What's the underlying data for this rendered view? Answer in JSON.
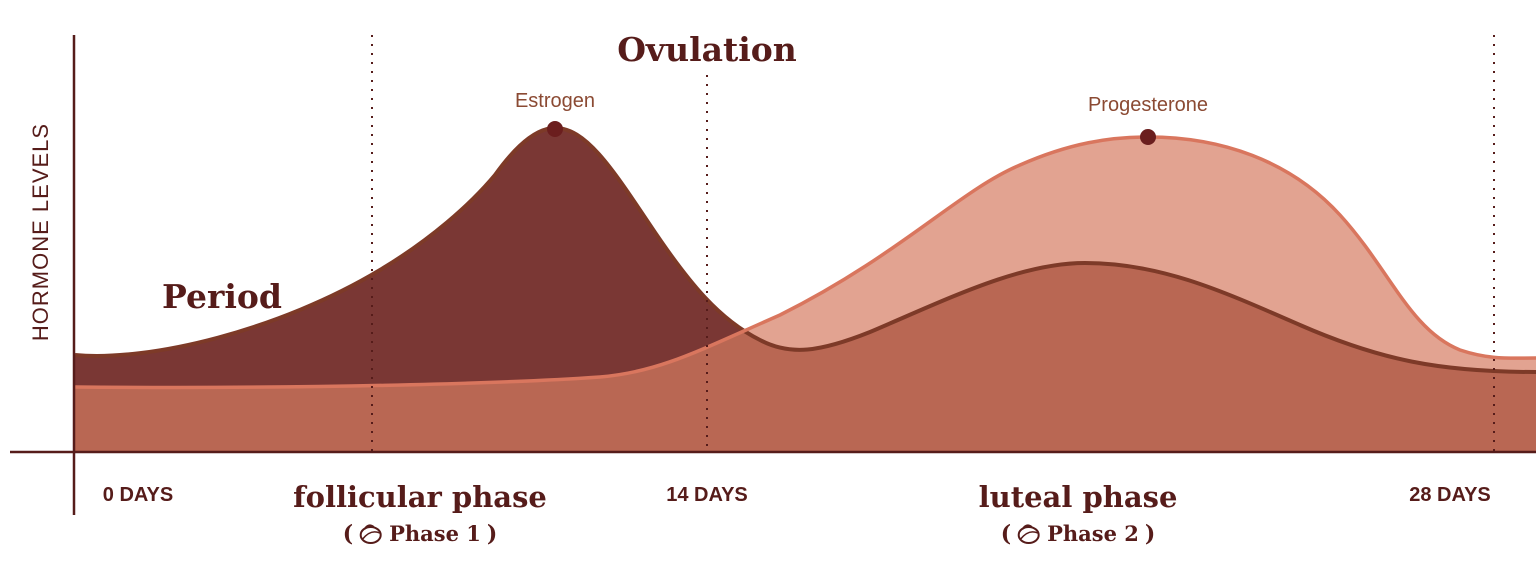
{
  "y_axis_label": "HORMONE LEVELS",
  "markers": {
    "ovulation": "Ovulation",
    "period": "Period"
  },
  "hormones": {
    "estrogen": "Estrogen",
    "progesterone": "Progesterone"
  },
  "x_ticks": [
    "0 DAYS",
    "14 DAYS",
    "28 DAYS"
  ],
  "phases": [
    {
      "name": "follicular phase",
      "open": "(",
      "label": "Phase 1",
      "close": ")"
    },
    {
      "name": "luteal phase",
      "open": "(",
      "label": "Phase 2",
      "close": ")"
    }
  ],
  "colors": {
    "estrogen_fill": "#7a3734",
    "estrogen_line": "#7d3a28",
    "progesterone_fill": "#e2a391",
    "progesterone_line": "#d9765e",
    "overlap_fill": "#b96753",
    "text": "#561c1a"
  }
}
